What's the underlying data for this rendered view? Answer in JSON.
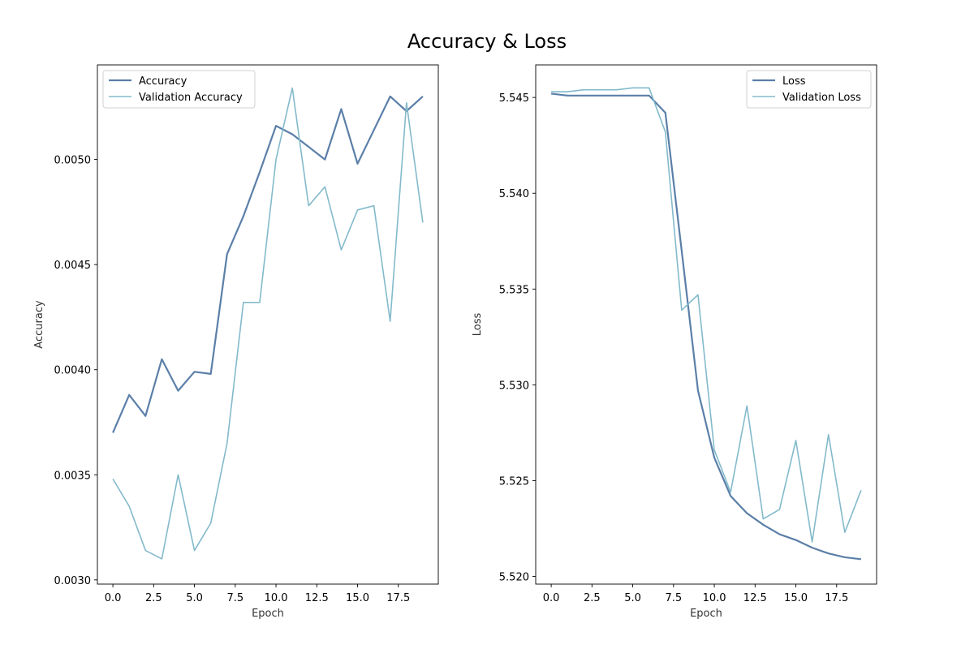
{
  "figure_title": "Accuracy & Loss",
  "colors": {
    "train": "#5B7FA8",
    "validation": "#83BACB"
  },
  "chart_data": [
    {
      "type": "line",
      "title": "",
      "xlabel": "Epoch",
      "ylabel": "Accuracy",
      "xlim": [
        -0.95,
        19.95
      ],
      "ylim": [
        0.00298,
        0.00545
      ],
      "xticks": [
        0,
        2.5,
        5,
        7.5,
        10,
        12.5,
        15,
        17.5
      ],
      "xtick_labels": [
        "0.0",
        "2.5",
        "5.0",
        "7.5",
        "10.0",
        "12.5",
        "15.0",
        "17.5"
      ],
      "yticks": [
        0.003,
        0.0035,
        0.004,
        0.0045,
        0.005
      ],
      "ytick_labels": [
        "0.0030",
        "0.0035",
        "0.0040",
        "0.0045",
        "0.0050"
      ],
      "legend_location": "upper-left",
      "x": [
        0,
        1,
        2,
        3,
        4,
        5,
        6,
        7,
        8,
        9,
        10,
        11,
        12,
        13,
        14,
        15,
        16,
        17,
        18,
        19
      ],
      "series": [
        {
          "name": "Accuracy",
          "role": "train",
          "values": [
            0.0037,
            0.00388,
            0.00378,
            0.00405,
            0.0039,
            0.00399,
            0.00398,
            0.00455,
            0.00473,
            0.00494,
            0.00516,
            0.00512,
            0.00506,
            0.005,
            0.00524,
            0.00498,
            0.00514,
            0.0053,
            0.00523,
            0.0053
          ]
        },
        {
          "name": "Validation Accuracy",
          "role": "validation",
          "values": [
            0.00348,
            0.00335,
            0.00314,
            0.0031,
            0.0035,
            0.00314,
            0.00327,
            0.00365,
            0.00432,
            0.00432,
            0.005,
            0.00534,
            0.00478,
            0.00487,
            0.00457,
            0.00476,
            0.00478,
            0.00423,
            0.00527,
            0.0047
          ]
        }
      ]
    },
    {
      "type": "line",
      "title": "",
      "xlabel": "Epoch",
      "ylabel": "Loss",
      "xlim": [
        -0.95,
        19.95
      ],
      "ylim": [
        5.5196,
        5.5467
      ],
      "xticks": [
        0,
        2.5,
        5,
        7.5,
        10,
        12.5,
        15,
        17.5
      ],
      "xtick_labels": [
        "0.0",
        "2.5",
        "5.0",
        "7.5",
        "10.0",
        "12.5",
        "15.0",
        "17.5"
      ],
      "yticks": [
        5.52,
        5.525,
        5.53,
        5.535,
        5.54,
        5.545
      ],
      "ytick_labels": [
        "5.520",
        "5.525",
        "5.530",
        "5.535",
        "5.540",
        "5.545"
      ],
      "legend_location": "upper-right",
      "x": [
        0,
        1,
        2,
        3,
        4,
        5,
        6,
        7,
        8,
        9,
        10,
        11,
        12,
        13,
        14,
        15,
        16,
        17,
        18,
        19
      ],
      "series": [
        {
          "name": "Loss",
          "role": "train",
          "values": [
            5.5452,
            5.5451,
            5.5451,
            5.5451,
            5.5451,
            5.5451,
            5.5451,
            5.5442,
            5.537,
            5.5297,
            5.5262,
            5.5242,
            5.5233,
            5.5227,
            5.5222,
            5.5219,
            5.5215,
            5.5212,
            5.521,
            5.5209
          ]
        },
        {
          "name": "Validation Loss",
          "role": "validation",
          "values": [
            5.5453,
            5.5453,
            5.5454,
            5.5454,
            5.5454,
            5.5455,
            5.5455,
            5.5432,
            5.5339,
            5.5347,
            5.5266,
            5.5244,
            5.5289,
            5.523,
            5.5235,
            5.5271,
            5.5218,
            5.5274,
            5.5223,
            5.5245
          ]
        }
      ]
    }
  ]
}
